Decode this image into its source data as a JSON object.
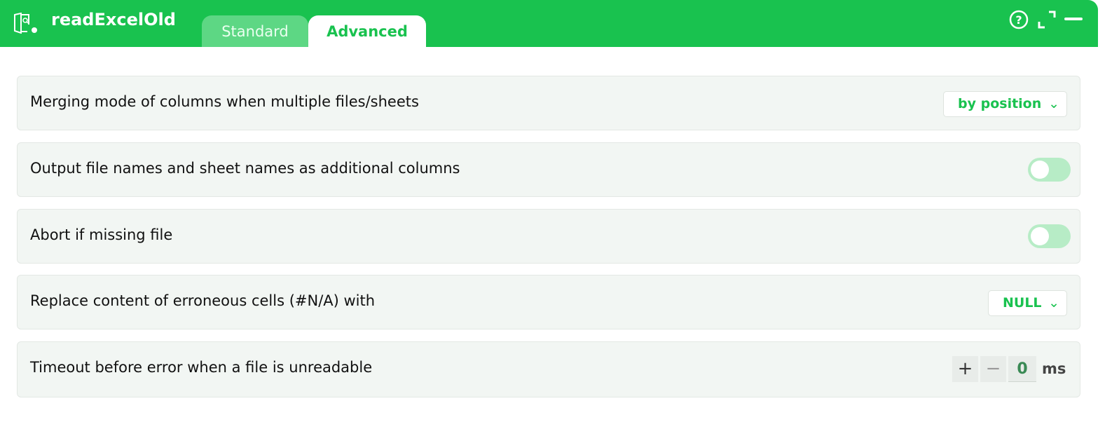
{
  "header": {
    "title": "readExcelOld",
    "tabs": [
      {
        "label": "Standard",
        "active": false
      },
      {
        "label": "Advanced",
        "active": true
      }
    ],
    "icons": [
      "help-icon",
      "expand-icon",
      "minimize-icon"
    ]
  },
  "settings": [
    {
      "label": "Merging mode of columns when multiple files/sheets",
      "type": "select",
      "value": "by position"
    },
    {
      "label": "Output file names and sheet names as additional columns",
      "type": "toggle",
      "value": false
    },
    {
      "label": "Abort if missing file",
      "type": "toggle",
      "value": false
    },
    {
      "label": "Replace content of erroneous cells (#N/A) with",
      "type": "select",
      "value": "NULL"
    },
    {
      "label": "Timeout before error when a file is unreadable",
      "type": "stepper",
      "value": "0",
      "unit": "ms",
      "plus": "+",
      "minus": "−"
    }
  ],
  "colors": {
    "accent": "#19c24f",
    "row_bg": "#f2f6f3"
  }
}
